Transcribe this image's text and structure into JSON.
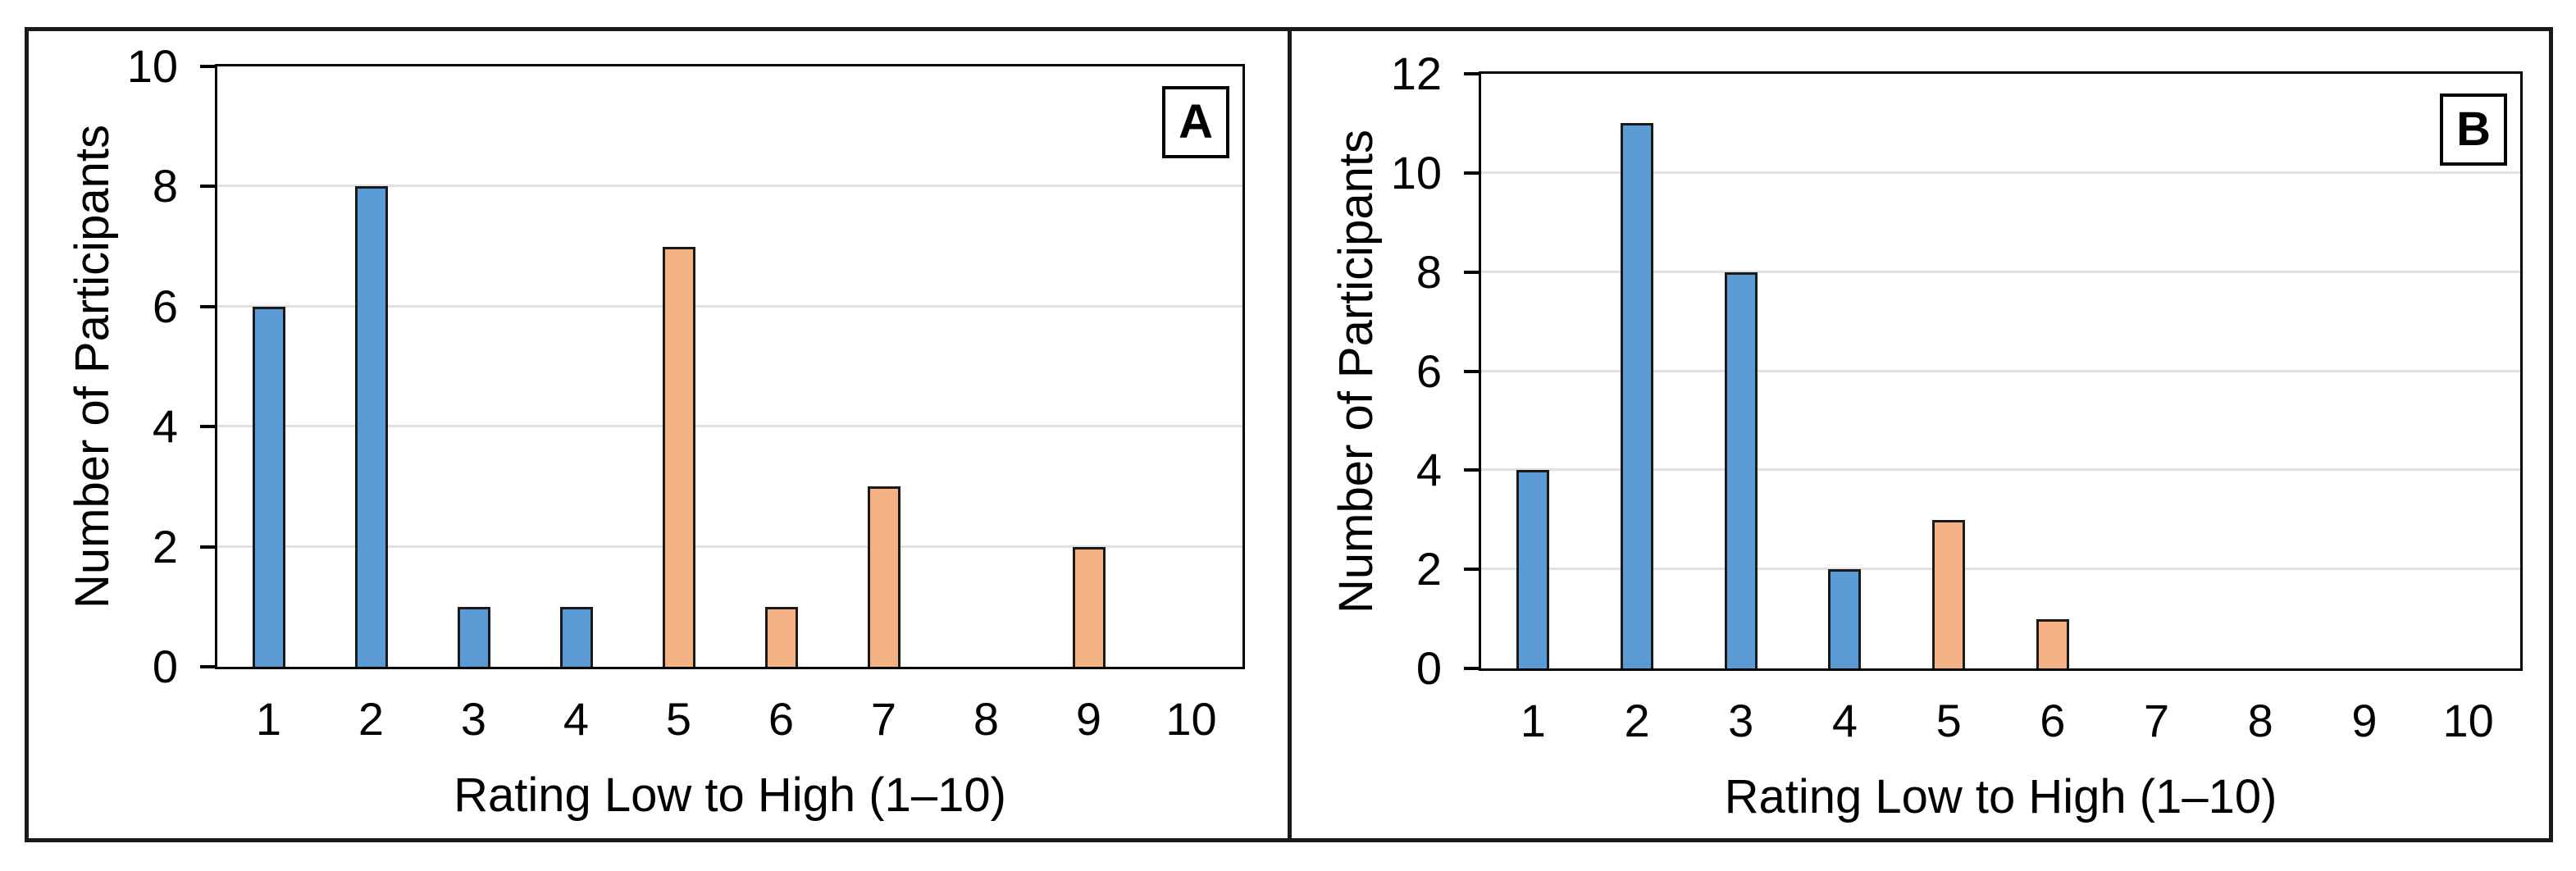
{
  "colors": {
    "bar_blue": "#5B9BD5",
    "bar_orange": "#F4B183",
    "bar_border": "#1a1a1a",
    "gridline": "#e0e0e0",
    "axis": "#000000",
    "frame": "#1a1a1a",
    "background": "#ffffff"
  },
  "chart_data": [
    {
      "type": "bar",
      "panel_label": "A",
      "title": "",
      "xlabel": "Rating Low to High (1–10)",
      "ylabel": "Number of Participants",
      "categories": [
        "1",
        "2",
        "3",
        "4",
        "5",
        "6",
        "7",
        "8",
        "9",
        "10"
      ],
      "values": [
        6,
        8,
        1,
        1,
        7,
        1,
        3,
        0,
        2,
        0
      ],
      "bar_colors": [
        "#5B9BD5",
        "#5B9BD5",
        "#5B9BD5",
        "#5B9BD5",
        "#F4B183",
        "#F4B183",
        "#F4B183",
        "#F4B183",
        "#F4B183",
        "#F4B183"
      ],
      "ylim": [
        0,
        10
      ],
      "ytick_step": 2,
      "y_tick_labels": [
        "0",
        "2",
        "4",
        "6",
        "8",
        "10"
      ],
      "grid": "horizontal",
      "legend": "none"
    },
    {
      "type": "bar",
      "panel_label": "B",
      "title": "",
      "xlabel": "Rating Low to High (1–10)",
      "ylabel": "Number of Participants",
      "categories": [
        "1",
        "2",
        "3",
        "4",
        "5",
        "6",
        "7",
        "8",
        "9",
        "10"
      ],
      "values": [
        4,
        11,
        8,
        2,
        3,
        1,
        0,
        0,
        0,
        0
      ],
      "bar_colors": [
        "#5B9BD5",
        "#5B9BD5",
        "#5B9BD5",
        "#5B9BD5",
        "#F4B183",
        "#F4B183",
        "#F4B183",
        "#F4B183",
        "#F4B183",
        "#F4B183"
      ],
      "ylim": [
        0,
        12
      ],
      "ytick_step": 2,
      "y_tick_labels": [
        "0",
        "2",
        "4",
        "6",
        "8",
        "10",
        "12"
      ],
      "grid": "horizontal",
      "legend": "none"
    }
  ]
}
